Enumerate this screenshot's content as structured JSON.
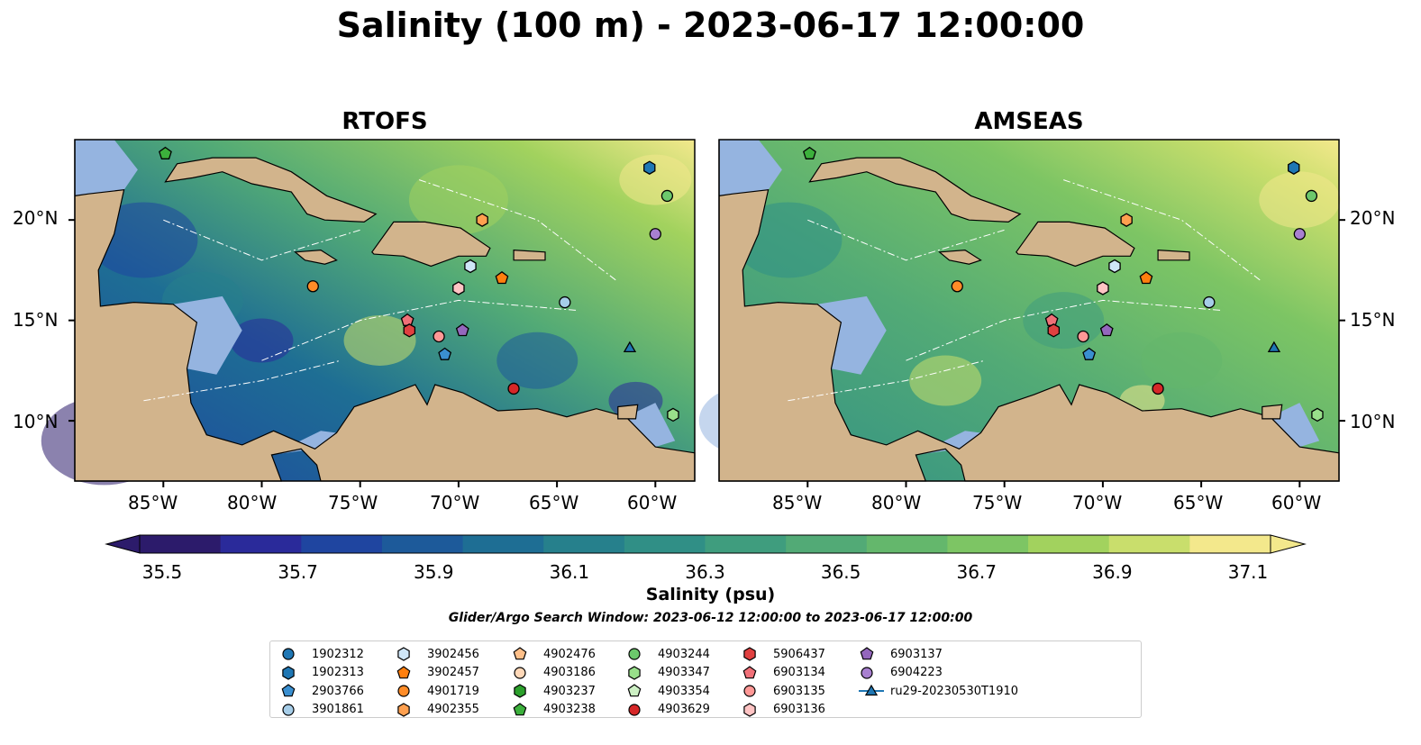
{
  "title": "Salinity (100 m) - 2023-06-17 12:00:00",
  "panels": [
    {
      "title": "RTOFS"
    },
    {
      "title": "AMSEAS"
    }
  ],
  "axes": {
    "lon_ticks": [
      "85°W",
      "80°W",
      "75°W",
      "70°W",
      "65°W",
      "60°W"
    ],
    "lat_ticks": [
      "20°N",
      "15°N",
      "10°N"
    ]
  },
  "colorbar": {
    "label": "Salinity (psu)",
    "ticks": [
      "35.5",
      "35.7",
      "35.9",
      "36.1",
      "36.3",
      "36.5",
      "36.7",
      "36.9",
      "37.1"
    ],
    "colors": [
      "#2c1b6b",
      "#2a2a9a",
      "#1f45a0",
      "#1d5a9a",
      "#1e6e94",
      "#26808c",
      "#308f86",
      "#3f9d7e",
      "#52aa76",
      "#64b76c",
      "#7dc564",
      "#a2d25e",
      "#c9de6c",
      "#f3e88c"
    ]
  },
  "search_window": "Glider/Argo Search Window: 2023-06-12 12:00:00 to 2023-06-17 12:00:00",
  "colors": {
    "land": "#d2b48c",
    "shelf": "#95b4e0",
    "ocean_mid": "#52aa76"
  },
  "legend": [
    {
      "label": "1902312",
      "marker": "circle",
      "color": "#1f77b4"
    },
    {
      "label": "1902313",
      "marker": "hexagon",
      "color": "#1f77b4"
    },
    {
      "label": "2903766",
      "marker": "pentagon",
      "color": "#3a8fd0"
    },
    {
      "label": "3901861",
      "marker": "circle",
      "color": "#a6cde8"
    },
    {
      "label": "3902456",
      "marker": "hexagon",
      "color": "#cfe6f7"
    },
    {
      "label": "3902457",
      "marker": "pentagon",
      "color": "#ff7f0e"
    },
    {
      "label": "4901719",
      "marker": "circle",
      "color": "#ff8c28"
    },
    {
      "label": "4902355",
      "marker": "hexagon",
      "color": "#ffa04f"
    },
    {
      "label": "4902476",
      "marker": "pentagon",
      "color": "#ffc08a"
    },
    {
      "label": "4903186",
      "marker": "circle",
      "color": "#ffd8b8"
    },
    {
      "label": "4903237",
      "marker": "hexagon",
      "color": "#2ca02c"
    },
    {
      "label": "4903238",
      "marker": "pentagon",
      "color": "#3cb03c"
    },
    {
      "label": "4903244",
      "marker": "circle",
      "color": "#6cc86c"
    },
    {
      "label": "4903347",
      "marker": "hexagon",
      "color": "#98df8a"
    },
    {
      "label": "4903354",
      "marker": "pentagon",
      "color": "#cdf0c4"
    },
    {
      "label": "4903629",
      "marker": "circle",
      "color": "#d62728"
    },
    {
      "label": "5906437",
      "marker": "hexagon",
      "color": "#e04040"
    },
    {
      "label": "6903134",
      "marker": "pentagon",
      "color": "#f07078"
    },
    {
      "label": "6903135",
      "marker": "circle",
      "color": "#ff9896"
    },
    {
      "label": "6903136",
      "marker": "hexagon",
      "color": "#ffc4c4"
    },
    {
      "label": "6903137",
      "marker": "pentagon",
      "color": "#9467bd"
    },
    {
      "label": "6904223",
      "marker": "circle",
      "color": "#a880d0"
    },
    {
      "label": "ru29-20230530T1910",
      "marker": "triangle-line",
      "color": "#1f77b4"
    }
  ],
  "chart_data": {
    "type": "map",
    "variable": "Salinity",
    "depth": "100 m",
    "units": "psu",
    "time": "2023-06-17 12:00:00",
    "extent": {
      "lon": [
        -89.5,
        -58.0
      ],
      "lat": [
        7.0,
        24.0
      ]
    },
    "color_range": [
      35.5,
      37.1
    ],
    "models": [
      "RTOFS",
      "AMSEAS"
    ],
    "platforms": [
      {
        "id": "1902313",
        "lon": -60.3,
        "lat": 22.6
      },
      {
        "id": "4903244",
        "lon": -59.4,
        "lat": 21.2
      },
      {
        "id": "6904223",
        "lon": -60.0,
        "lat": 19.3
      },
      {
        "id": "4902355",
        "lon": -68.8,
        "lat": 20.0
      },
      {
        "id": "3902456",
        "lon": -69.4,
        "lat": 17.7
      },
      {
        "id": "3902457",
        "lon": -67.8,
        "lat": 17.1
      },
      {
        "id": "4901719",
        "lon": -77.4,
        "lat": 16.7
      },
      {
        "id": "6903136",
        "lon": -70.0,
        "lat": 16.6
      },
      {
        "id": "3901861",
        "lon": -64.6,
        "lat": 15.9
      },
      {
        "id": "6903134",
        "lon": -72.6,
        "lat": 15.0
      },
      {
        "id": "5906437",
        "lon": -72.5,
        "lat": 14.5
      },
      {
        "id": "6903135",
        "lon": -71.0,
        "lat": 14.2
      },
      {
        "id": "6903137",
        "lon": -69.8,
        "lat": 14.5
      },
      {
        "id": "2903766",
        "lon": -70.7,
        "lat": 13.3
      },
      {
        "id": "4903629",
        "lon": -67.2,
        "lat": 11.6
      },
      {
        "id": "ru29-20230530T1910",
        "lon": -61.3,
        "lat": 13.6
      },
      {
        "id": "4903347",
        "lon": -59.1,
        "lat": 10.3
      },
      {
        "id": "4903238",
        "lon": -84.9,
        "lat": 23.3
      }
    ]
  }
}
